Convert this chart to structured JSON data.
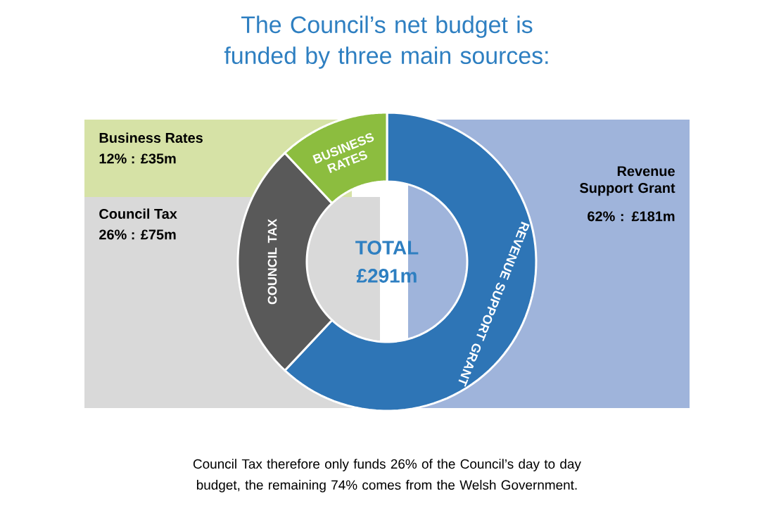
{
  "chart_data": {
    "type": "donut",
    "title": "The Council’s net budget is funded by three main sources:",
    "categories": [
      "REVENUE SUPPORT GRANT",
      "COUNCIL TAX",
      "BUSINESS RATES"
    ],
    "values": [
      62,
      26,
      12
    ],
    "colors": [
      "#2e75b6",
      "#595959",
      "#8cbd3f"
    ],
    "annotations": [
      "TOTAL",
      "£291m",
      "Revenue Support Grant",
      "62% : £181m",
      "Council Tax",
      "26% : £75m",
      "Business Rates",
      "12% : £35m",
      "Council Tax therefore only funds 26% of the Council’s day to day budget, the remaining 74% comes from the Welsh Government."
    ]
  }
}
